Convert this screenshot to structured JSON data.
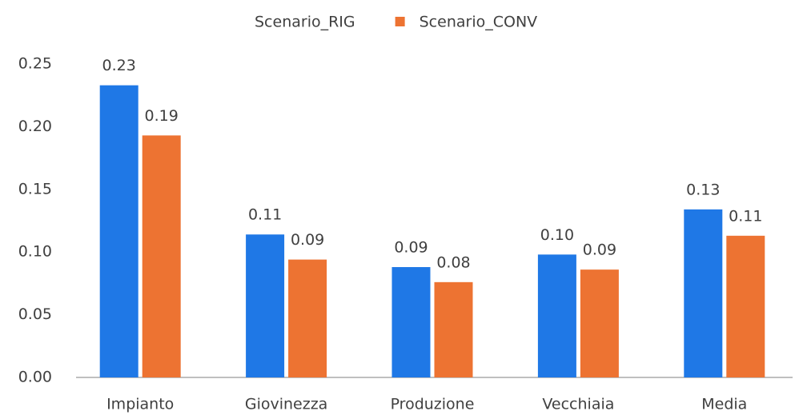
{
  "chart_data": {
    "type": "bar",
    "categories": [
      "Impianto",
      "Giovinezza",
      "Produzione",
      "Vecchiaia",
      "Media"
    ],
    "series": [
      {
        "name": "Scenario_RIG",
        "color": "#1f78e6",
        "values": [
          0.233,
          0.114,
          0.088,
          0.098,
          0.134
        ],
        "value_labels": [
          "0.23",
          "0.11",
          "0.09",
          "0.10",
          "0.13"
        ]
      },
      {
        "name": "Scenario_CONV",
        "color": "#ed7332",
        "values": [
          0.193,
          0.094,
          0.076,
          0.086,
          0.113
        ],
        "value_labels": [
          "0.19",
          "0.09",
          "0.08",
          "0.09",
          "0.11"
        ]
      }
    ],
    "ylim": [
      0,
      0.25
    ],
    "yticks": [
      {
        "value": 0,
        "label": "0.00"
      },
      {
        "value": 0.05,
        "label": "0.05"
      },
      {
        "value": 0.1,
        "label": "0.10"
      },
      {
        "value": 0.15,
        "label": "0.15"
      },
      {
        "value": 0.2,
        "label": "0.20"
      },
      0.25
    ],
    "grid": false,
    "legend": "top"
  }
}
